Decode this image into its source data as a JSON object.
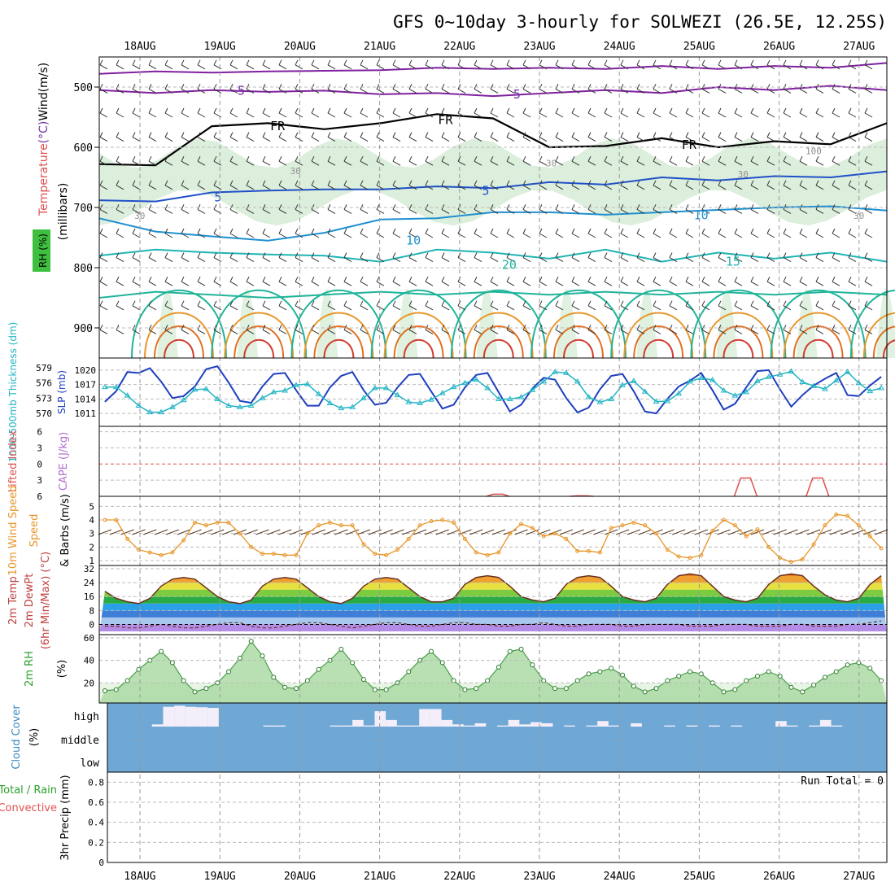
{
  "title": "GFS 0~10day 3-hourly for SOLWEZI (26.5E, 12.25S)",
  "dates": [
    "18AUG",
    "19AUG",
    "20AUG",
    "21AUG",
    "22AUG",
    "23AUG",
    "24AUG",
    "25AUG",
    "26AUG",
    "27AUG"
  ],
  "chart_data": [
    {
      "type": "heatmap",
      "panel": "upper-air",
      "ylabel_parts": [
        "Temperature",
        "(°C)",
        "Wind",
        "(m/s)"
      ],
      "ylabel_colors": [
        "#e05050",
        "#7030a0",
        "#000000",
        "#000000"
      ],
      "ylabel2": "(millibars)",
      "rh_label": "RH (%)",
      "y_ticks": [
        500,
        600,
        700,
        800,
        900
      ],
      "ylim": [
        450,
        950
      ],
      "contour_labels": [
        {
          "text": "-5",
          "day": 1.1,
          "p": 506,
          "color": "#7030a0"
        },
        {
          "text": "-5",
          "day": 4.55,
          "p": 512,
          "color": "#7030a0"
        },
        {
          "text": "FR",
          "day": 1.6,
          "p": 565,
          "color": "#000000"
        },
        {
          "text": "FR",
          "day": 3.7,
          "p": 555,
          "color": "#000000"
        },
        {
          "text": "FR",
          "day": 6.75,
          "p": 596,
          "color": "#000000"
        },
        {
          "text": "5",
          "day": 0.9,
          "p": 683,
          "color": "#2050c8"
        },
        {
          "text": "5",
          "day": 4.25,
          "p": 672,
          "color": "#2050c8"
        },
        {
          "text": "10",
          "day": 3.3,
          "p": 755,
          "color": "#1e90d0"
        },
        {
          "text": "10",
          "day": 6.9,
          "p": 713,
          "color": "#1e90d0"
        },
        {
          "text": "15",
          "day": 7.3,
          "p": 790,
          "color": "#20b4b4"
        },
        {
          "text": "20",
          "day": 4.5,
          "p": 795,
          "color": "#20b49a"
        },
        {
          "text": "30",
          "day": 1.85,
          "p": 638,
          "color": "#909090"
        },
        {
          "text": "30",
          "day": 5.05,
          "p": 625,
          "color": "#909090"
        },
        {
          "text": "30",
          "day": 7.45,
          "p": 643,
          "color": "#909090"
        },
        {
          "text": "30",
          "day": -0.1,
          "p": 712,
          "color": "#909090"
        },
        {
          "text": "30",
          "day": 8.9,
          "p": 712,
          "color": "#909090"
        },
        {
          "text": "100",
          "day": 8.3,
          "p": 605,
          "color": "#909090"
        }
      ],
      "isotherms": [
        {
          "name": "-5",
          "color": "#8020a0",
          "p": [
            478,
            474,
            476,
            474,
            473,
            472,
            468,
            470,
            468,
            470,
            465,
            470,
            465,
            468,
            460
          ]
        },
        {
          "name": "-5 lower",
          "color": "#8020a0",
          "p": [
            505,
            510,
            505,
            508,
            506,
            512,
            510,
            515,
            510,
            505,
            510,
            500,
            505,
            498,
            505
          ]
        },
        {
          "name": "FR",
          "color": "#000000",
          "p": [
            628,
            630,
            565,
            560,
            570,
            560,
            545,
            552,
            600,
            598,
            585,
            600,
            590,
            595,
            560
          ]
        },
        {
          "name": "5",
          "color": "#2050c8",
          "p": [
            688,
            690,
            675,
            672,
            670,
            670,
            665,
            668,
            658,
            662,
            650,
            655,
            648,
            650,
            640
          ]
        },
        {
          "name": "10",
          "color": "#1e90d0",
          "p": [
            718,
            740,
            748,
            755,
            742,
            720,
            718,
            708,
            708,
            712,
            708,
            704,
            700,
            698,
            705
          ]
        },
        {
          "name": "15",
          "color": "#20b4b4",
          "p": [
            780,
            770,
            775,
            778,
            780,
            790,
            770,
            775,
            785,
            770,
            790,
            775,
            785,
            775,
            790
          ]
        },
        {
          "name": "20",
          "color": "#20b49a",
          "p": [
            850,
            840,
            845,
            850,
            845,
            840,
            845,
            840,
            845,
            840,
            845,
            840,
            845,
            840,
            845
          ]
        }
      ]
    },
    {
      "type": "line",
      "panel": "slp-thickness",
      "ylabel_left": "1000-500mb Thickness (dm)",
      "ylabel_right": "SLP (mb)",
      "left_ticks": [
        570,
        573,
        576,
        579
      ],
      "right_ticks": [
        1011,
        1014,
        1017,
        1020
      ],
      "series": [
        {
          "name": "SLP (mb)",
          "color": "#1f3fbf",
          "values": [
            1013.4,
            1015.6,
            1019.6,
            1019.4,
            1020.4,
            1017.6,
            1014.2,
            1014.6,
            1016.6,
            1020.2,
            1020.8,
            1017.4,
            1013.6,
            1013.2,
            1016.6,
            1019.2,
            1019.4,
            1015.8,
            1012.6,
            1012.6,
            1016.4,
            1018.8,
            1019.6,
            1015.8,
            1012.8,
            1013.2,
            1016.4,
            1019.0,
            1019.2,
            1015.6,
            1012.0,
            1012.8,
            1016.4,
            1019.0,
            1019.4,
            1015.4,
            1011.4,
            1012.8,
            1016.2,
            1018.4,
            1018.0,
            1014.2,
            1011.2,
            1012.2,
            1016.0,
            1018.8,
            1019.2,
            1015.6,
            1011.4,
            1011.0,
            1014.0,
            1016.6,
            1017.8,
            1019.4,
            1015.8,
            1011.8,
            1013.0,
            1016.4,
            1019.8,
            1020.0,
            1016.0,
            1012.4,
            1014.8,
            1016.8,
            1018.2,
            1019.4,
            1014.8,
            1014.6,
            1016.8,
            1018.6
          ]
        },
        {
          "name": "1000-500mb Thickness (dm)",
          "color": "#20b4c4",
          "values": [
            575.2,
            575.2,
            573.5,
            571.5,
            570.2,
            570.2,
            571.2,
            572.6,
            574.7,
            574.8,
            572.8,
            571.5,
            571.2,
            571.5,
            573.0,
            574.2,
            574.5,
            575.6,
            575.8,
            573.8,
            572.0,
            571.0,
            571.2,
            573.0,
            575.0,
            575.0,
            573.6,
            572.2,
            572.0,
            572.7,
            574.0,
            575.2,
            576.0,
            576.7,
            575.0,
            572.8,
            572.8,
            573.2,
            574.6,
            576.3,
            578.2,
            578.0,
            576.3,
            573.2,
            572.2,
            572.8,
            575.6,
            576.4,
            574.3,
            572.3,
            572.4,
            573.9,
            576.3,
            577.0,
            576.6,
            574.5,
            573.5,
            574.2,
            576.4,
            577.2,
            577.7,
            578.3,
            576.2,
            575.4,
            574.8,
            576.5,
            578.2,
            576.0,
            574.4,
            575.0
          ]
        }
      ]
    },
    {
      "type": "line",
      "panel": "instability",
      "ylabel_left": "Lifted Index",
      "ylabel_right": "CAPE (J/kg)",
      "left_ticks": [
        -6,
        -3,
        0,
        3,
        6
      ],
      "note": "Lifted index near +6 (bottom edge) with small dips near 22.5AUG, 23.5AUG, 25.6AUG, 26.5AUG"
    },
    {
      "type": "line",
      "panel": "wind-10m",
      "ylabel_left": "10m Wind Speed",
      "ylabel_right": "& Barbs (m/s)",
      "y_ticks": [
        1,
        2,
        3,
        4,
        5
      ],
      "ylim": [
        1,
        5.5
      ],
      "series": [
        {
          "name": "10m Wind Speed (m/s)",
          "color": "#e8962a",
          "values": [
            4.0,
            4.0,
            2.6,
            1.8,
            1.6,
            1.4,
            1.6,
            2.5,
            3.8,
            3.6,
            3.8,
            3.8,
            3.0,
            2.0,
            1.5,
            1.5,
            1.4,
            1.4,
            3.0,
            3.6,
            3.8,
            3.6,
            3.6,
            2.2,
            1.5,
            1.4,
            1.8,
            2.6,
            3.6,
            3.9,
            4.0,
            3.8,
            2.6,
            1.6,
            1.4,
            1.6,
            3.0,
            3.7,
            3.4,
            2.8,
            3.0,
            2.6,
            1.7,
            1.7,
            1.6,
            3.4,
            3.6,
            3.8,
            3.6,
            3.0,
            1.8,
            1.3,
            1.2,
            1.4,
            3.2,
            4.0,
            3.6,
            2.8,
            3.3,
            2.0,
            1.2,
            0.9,
            1.1,
            2.2,
            3.6,
            4.4,
            4.3,
            3.6,
            2.8,
            1.9
          ]
        }
      ]
    },
    {
      "type": "area",
      "panel": "temperature-2m",
      "ylabel_left": "2m Temp",
      "ylabel_left2": "2m DewPt",
      "ylabel_left3": "(6hr Min/Max) (°C)",
      "y_ticks": [
        0,
        8,
        16,
        24,
        32
      ],
      "ylim": [
        -4,
        32
      ],
      "series": [
        {
          "name": "2m Temp (°C)",
          "values": [
            19,
            15,
            13,
            12,
            15,
            22,
            26,
            27,
            26,
            21,
            16,
            13,
            12,
            14,
            22,
            26,
            27,
            26,
            21,
            16,
            13,
            12,
            15,
            22,
            26,
            27,
            26,
            21,
            16,
            13,
            13,
            15,
            23,
            27,
            28,
            27,
            22,
            16,
            14,
            13,
            15,
            23,
            27,
            28,
            27,
            22,
            16,
            14,
            13,
            15,
            23,
            28,
            29,
            28,
            22,
            16,
            14,
            13,
            15,
            23,
            28,
            29,
            28,
            22,
            17,
            14,
            13,
            15,
            23,
            28
          ]
        },
        {
          "name": "2m DewPt (°C)",
          "values": [
            -1,
            -1,
            -2,
            -2,
            -1,
            0,
            -1,
            -2,
            -2,
            -1,
            0,
            1,
            1,
            -1,
            -2,
            -2,
            -1,
            0,
            1,
            1,
            0,
            -1,
            -2,
            -1,
            0,
            1,
            1,
            0,
            -1,
            -1,
            0,
            1,
            1,
            0,
            0,
            -1,
            -1,
            0,
            0,
            1,
            0,
            -1,
            -1,
            0,
            0,
            0,
            -1,
            -1,
            0,
            0,
            0,
            0,
            -1,
            -1,
            -1,
            0,
            0,
            0,
            -1,
            -1,
            -1,
            0,
            0,
            -1,
            -1,
            -1,
            0,
            0,
            1,
            2
          ]
        }
      ]
    },
    {
      "type": "area",
      "panel": "rh-2m",
      "ylabel_left": "2m RH",
      "ylabel_left2": "(%)",
      "y_ticks": [
        20,
        40,
        60
      ],
      "ylim": [
        5,
        60
      ],
      "series": [
        {
          "name": "2m RH (%)",
          "color": "#4aa04a",
          "values": [
            13,
            14,
            22,
            32,
            40,
            48,
            38,
            22,
            12,
            15,
            20,
            30,
            42,
            57,
            44,
            25,
            16,
            15,
            22,
            32,
            40,
            50,
            38,
            23,
            14,
            14,
            20,
            30,
            40,
            48,
            38,
            22,
            14,
            15,
            22,
            34,
            48,
            50,
            36,
            22,
            15,
            15,
            22,
            28,
            30,
            33,
            27,
            17,
            12,
            15,
            22,
            26,
            30,
            28,
            20,
            12,
            14,
            22,
            26,
            30,
            26,
            16,
            12,
            18,
            25,
            30,
            36,
            38,
            33,
            22
          ]
        }
      ]
    },
    {
      "type": "bar",
      "panel": "cloud-cover",
      "ylabel_left": "Cloud Cover",
      "ylabel_left2": "(%)",
      "levels": [
        "high",
        "middle",
        "low"
      ],
      "series": [
        {
          "name": "high cloud (%)",
          "values": [
            0,
            0,
            0,
            0,
            10,
            90,
            95,
            90,
            88,
            85,
            0,
            0,
            0,
            0,
            5,
            5,
            0,
            0,
            0,
            0,
            5,
            5,
            30,
            5,
            70,
            30,
            5,
            5,
            80,
            80,
            30,
            10,
            5,
            15,
            0,
            5,
            30,
            10,
            20,
            15,
            0,
            5,
            0,
            5,
            25,
            5,
            0,
            15,
            0,
            0,
            5,
            0,
            5,
            0,
            5,
            0,
            5,
            0,
            0,
            0,
            25,
            5,
            0,
            5,
            30,
            5,
            0,
            0,
            0,
            0
          ]
        }
      ]
    },
    {
      "type": "bar",
      "panel": "precip",
      "ylabel_left": "3hr Precip (mm)",
      "legend_total": "Total / Rain",
      "legend_conv": "Convective",
      "y_ticks": [
        0,
        0.2,
        0.4,
        0.6,
        0.8
      ],
      "ylim": [
        0,
        0.9
      ],
      "run_total": "Run Total = 0",
      "series": [
        {
          "name": "3hr Precip (mm)",
          "values": [
            0,
            0,
            0,
            0,
            0,
            0,
            0,
            0,
            0,
            0,
            0,
            0,
            0,
            0,
            0,
            0,
            0,
            0,
            0,
            0,
            0,
            0,
            0,
            0,
            0,
            0,
            0,
            0,
            0,
            0,
            0,
            0,
            0,
            0,
            0,
            0,
            0,
            0,
            0,
            0,
            0,
            0,
            0,
            0,
            0,
            0,
            0,
            0,
            0,
            0,
            0,
            0,
            0,
            0,
            0,
            0,
            0,
            0,
            0,
            0,
            0,
            0,
            0,
            0,
            0,
            0,
            0,
            0,
            0,
            0
          ]
        }
      ]
    }
  ]
}
